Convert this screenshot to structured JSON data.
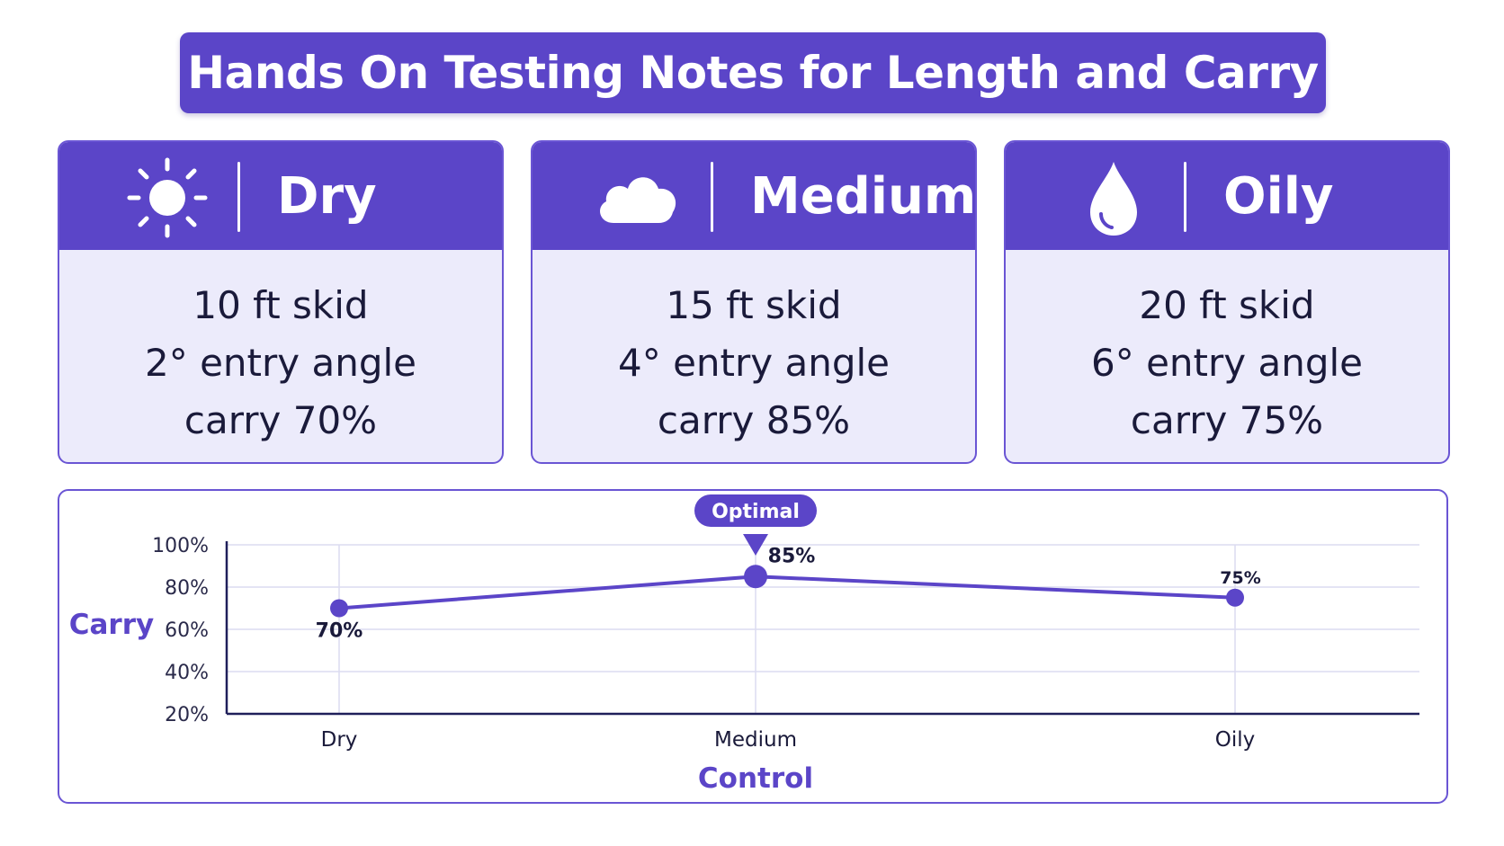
{
  "title": "Hands On Testing Notes for Length and Carry",
  "cards": [
    {
      "name": "Dry",
      "icon": "sun-icon",
      "lines": [
        "10 ft skid",
        "2° entry angle",
        "carry 70%"
      ]
    },
    {
      "name": "Medium",
      "icon": "cloud-icon",
      "lines": [
        "15 ft skid",
        "4° entry angle",
        "carry 85%"
      ]
    },
    {
      "name": "Oily",
      "icon": "droplet-icon",
      "lines": [
        "20 ft skid",
        "6° entry angle",
        "carry 75%"
      ]
    }
  ],
  "colors": {
    "primary": "#5b45c8",
    "card_bg": "#ecebfb",
    "text": "#1a1a3a"
  },
  "chart_data": {
    "type": "line",
    "categories": [
      "Dry",
      "Medium",
      "Oily"
    ],
    "values": [
      70,
      85,
      75
    ],
    "data_labels": [
      "70%",
      "85%",
      "75%"
    ],
    "y_ticks": [
      "100%",
      "80%",
      "60%",
      "40%",
      "20%"
    ],
    "ylim": [
      20,
      100
    ],
    "ylabel": "Carry",
    "xlabel": "Control",
    "annotation": {
      "category": "Medium",
      "text": "Optimal"
    },
    "grid": true
  }
}
